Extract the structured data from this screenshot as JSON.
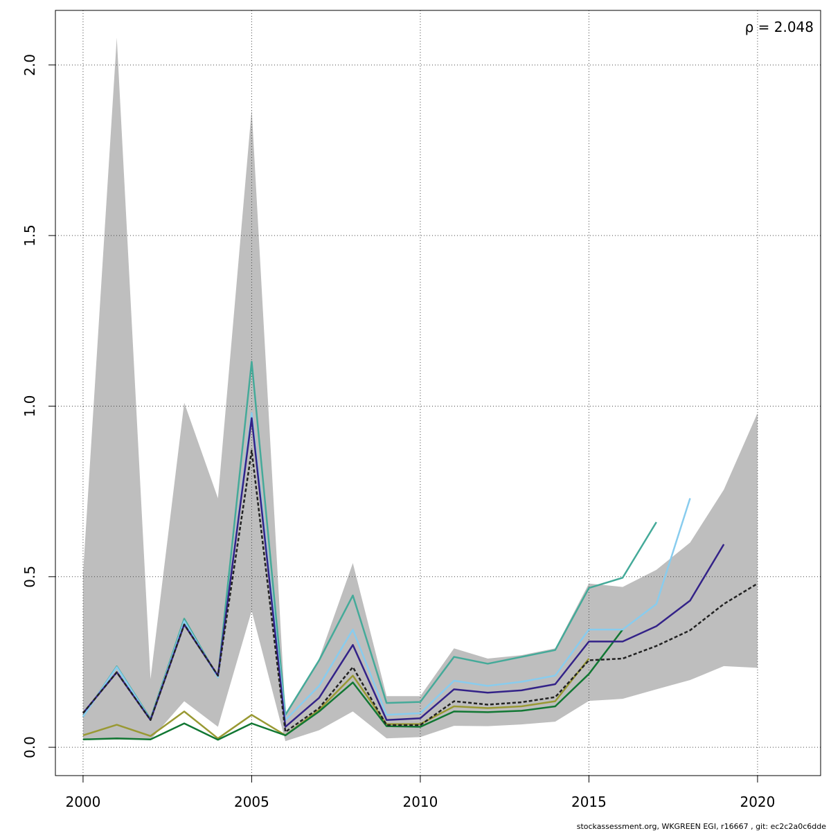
{
  "chart_data": {
    "type": "line",
    "annotation": "ρ = 2.048",
    "footer": "stockassessment.org, WKGREEN EGI, r16667 , git: ec2c2a0c6dde",
    "x": [
      2000,
      2001,
      2002,
      2003,
      2004,
      2005,
      2006,
      2007,
      2008,
      2009,
      2010,
      2011,
      2012,
      2013,
      2014,
      2015,
      2016,
      2017,
      2018,
      2019,
      2020
    ],
    "band": {
      "color": "#bebebe",
      "upper": [
        0.51,
        2.08,
        0.2,
        1.01,
        0.73,
        1.87,
        0.1,
        0.26,
        0.54,
        0.15,
        0.15,
        0.29,
        0.26,
        0.27,
        0.29,
        0.48,
        0.47,
        0.52,
        0.6,
        0.755,
        0.98
      ],
      "lower": [
        0.022,
        0.022,
        0.022,
        0.135,
        0.06,
        0.4,
        0.018,
        0.05,
        0.105,
        0.026,
        0.03,
        0.063,
        0.062,
        0.067,
        0.075,
        0.136,
        0.142,
        0.17,
        0.197,
        0.238,
        0.233
      ]
    },
    "series": [
      {
        "color": "#999933",
        "values": [
          0.035,
          0.066,
          0.033,
          0.105,
          0.026,
          0.095,
          0.035,
          0.11,
          0.21,
          0.068,
          0.068,
          0.12,
          0.115,
          0.12,
          0.135,
          0.26,
          null,
          null,
          null,
          null,
          null
        ]
      },
      {
        "color": "#117733",
        "values": [
          0.023,
          0.026,
          0.023,
          0.07,
          0.022,
          0.07,
          0.035,
          0.105,
          0.19,
          0.062,
          0.06,
          0.105,
          0.103,
          0.107,
          0.12,
          0.215,
          0.345,
          null,
          null,
          null,
          null
        ]
      },
      {
        "color": "#44aa99",
        "values": [
          0.09,
          0.237,
          0.083,
          0.377,
          0.205,
          1.13,
          0.095,
          0.255,
          0.445,
          0.13,
          0.133,
          0.265,
          0.245,
          0.265,
          0.285,
          0.467,
          0.497,
          0.66,
          null,
          null,
          null
        ]
      },
      {
        "color": "#88ccee",
        "values": [
          0.09,
          0.235,
          0.08,
          0.37,
          0.205,
          0.98,
          0.08,
          0.18,
          0.345,
          0.095,
          0.1,
          0.195,
          0.18,
          0.192,
          0.21,
          0.345,
          0.345,
          0.42,
          0.73,
          null,
          null
        ]
      },
      {
        "color": "#332288",
        "values": [
          0.1,
          0.22,
          0.08,
          0.36,
          0.21,
          0.965,
          0.06,
          0.145,
          0.3,
          0.08,
          0.085,
          0.17,
          0.16,
          0.167,
          0.185,
          0.31,
          0.31,
          0.355,
          0.43,
          0.595,
          null
        ]
      },
      {
        "color": "#222222",
        "dashed": true,
        "values": [
          0.1,
          0.22,
          0.08,
          0.36,
          0.21,
          0.87,
          0.045,
          0.115,
          0.235,
          0.065,
          0.065,
          0.135,
          0.125,
          0.132,
          0.147,
          0.255,
          0.26,
          0.297,
          0.343,
          0.42,
          0.48
        ]
      }
    ],
    "xlim": [
      1999.18,
      2021.87
    ],
    "ylim": [
      -0.083,
      2.16
    ],
    "xticks": [
      2000,
      2005,
      2010,
      2015,
      2020
    ],
    "yticks": [
      {
        "value": 0,
        "label": "0.0"
      },
      0.5,
      {
        "value": 1,
        "label": "1.0"
      },
      1.5,
      {
        "value": 2,
        "label": "2.0"
      }
    ],
    "grid": true
  }
}
